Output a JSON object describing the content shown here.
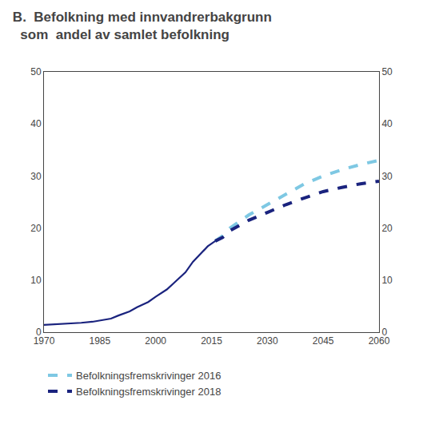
{
  "chart_data": {
    "type": "line",
    "title": "B.  Befolkning med innvandrerbakgrunn",
    "subtitle": "  som  andel av samlet befolkning",
    "series": [
      {
        "x": [
          1970,
          1973,
          1976,
          1980,
          1983,
          1985,
          1988,
          1990,
          1993,
          1995,
          1998,
          2000,
          2003,
          2005,
          2008,
          2010,
          2012,
          2014,
          2016,
          2018
        ],
        "values": [
          1.4,
          1.5,
          1.6,
          1.8,
          2.0,
          2.2,
          2.6,
          3.2,
          4.0,
          4.8,
          5.8,
          6.8,
          8.2,
          9.5,
          11.5,
          13.5,
          15.0,
          16.5,
          17.5,
          18.2
        ],
        "color": "#1a237e",
        "line_style": "solid"
      },
      {
        "name": "Befolkningsfremskrivinger 2016",
        "x": [
          2016,
          2018,
          2020,
          2025,
          2030,
          2035,
          2040,
          2045,
          2050,
          2055,
          2060
        ],
        "values": [
          17.5,
          18.5,
          20.0,
          22.5,
          24.5,
          26.5,
          28.5,
          30.0,
          31.2,
          32.2,
          33.0
        ],
        "color": "#7ec8e3",
        "line_style": "dashed"
      },
      {
        "name": "Befolkningsfremskrivinger 2018",
        "x": [
          2016,
          2018,
          2020,
          2025,
          2030,
          2035,
          2040,
          2045,
          2050,
          2055,
          2060
        ],
        "values": [
          17.5,
          18.2,
          19.5,
          21.5,
          23.0,
          24.5,
          25.8,
          27.0,
          27.8,
          28.5,
          29.0
        ],
        "color": "#1a237e",
        "line_style": "dashed"
      }
    ],
    "xlim": [
      1970,
      2060
    ],
    "xticks": [
      1970,
      1985,
      2000,
      2015,
      2030,
      2045,
      2060
    ],
    "ylim": [
      0,
      50
    ],
    "yticks": [
      0,
      10,
      20,
      30,
      40,
      50
    ],
    "y2lim": [
      0,
      50
    ],
    "y2ticks": [
      0,
      10,
      20,
      30,
      40,
      50
    ],
    "grid": false,
    "legend": "bottom"
  }
}
